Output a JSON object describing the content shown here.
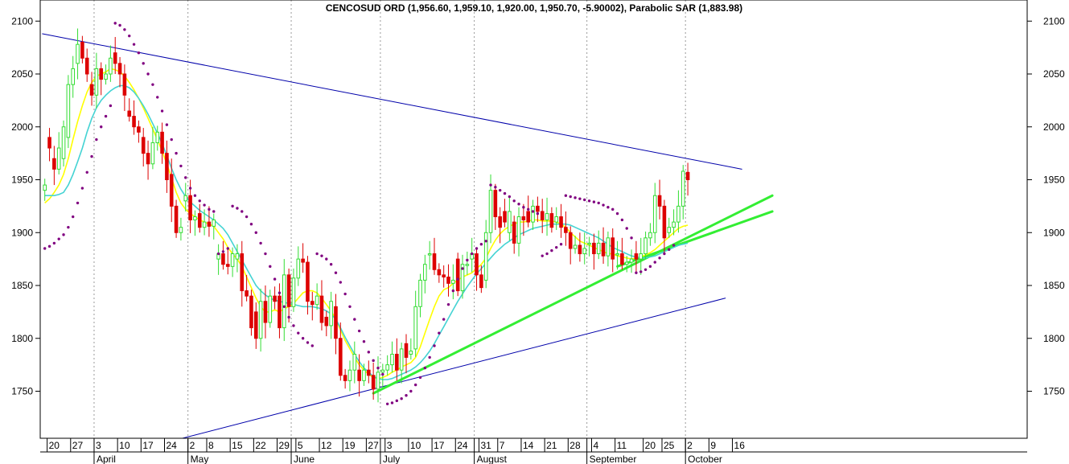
{
  "chart_data": {
    "type": "candlestick",
    "title": "CENCOSUD ORD (1,956.60, 1,959.10, 1,920.00, 1,950.70, -5.90002), Parabolic SAR (1,883.98)",
    "ylim": [
      1705,
      2125
    ],
    "y_ticks": [
      1750,
      1800,
      1850,
      1900,
      1950,
      2000,
      2050,
      2100
    ],
    "x_axis": {
      "day_ticks": [
        {
          "label": "20",
          "i": 1
        },
        {
          "label": "27",
          "i": 6
        },
        {
          "label": "3",
          "i": 11
        },
        {
          "label": "10",
          "i": 16
        },
        {
          "label": "17",
          "i": 21
        },
        {
          "label": "24",
          "i": 26
        },
        {
          "label": "2",
          "i": 31
        },
        {
          "label": "8",
          "i": 35
        },
        {
          "label": "15",
          "i": 40
        },
        {
          "label": "22",
          "i": 45
        },
        {
          "label": "29",
          "i": 50
        },
        {
          "label": "5",
          "i": 54
        },
        {
          "label": "12",
          "i": 59
        },
        {
          "label": "19",
          "i": 64
        },
        {
          "label": "27",
          "i": 69
        },
        {
          "label": "3",
          "i": 73
        },
        {
          "label": "10",
          "i": 78
        },
        {
          "label": "17",
          "i": 83
        },
        {
          "label": "24",
          "i": 88
        },
        {
          "label": "31",
          "i": 93
        },
        {
          "label": "7",
          "i": 97
        },
        {
          "label": "14",
          "i": 102
        },
        {
          "label": "21",
          "i": 107
        },
        {
          "label": "28",
          "i": 112
        },
        {
          "label": "4",
          "i": 117
        },
        {
          "label": "11",
          "i": 122
        },
        {
          "label": "20",
          "i": 128
        },
        {
          "label": "25",
          "i": 132
        },
        {
          "label": "2",
          "i": 137
        },
        {
          "label": "9",
          "i": 142
        },
        {
          "label": "16",
          "i": 147
        }
      ],
      "month_ticks": [
        {
          "label": "April",
          "i": 11
        },
        {
          "label": "May",
          "i": 31
        },
        {
          "label": "June",
          "i": 53
        },
        {
          "label": "July",
          "i": 72
        },
        {
          "label": "August",
          "i": 92
        },
        {
          "label": "September",
          "i": 116
        },
        {
          "label": "October",
          "i": 137
        }
      ]
    },
    "series": [
      {
        "kind": "ohlc",
        "close": [
          1945,
          1980,
          1960,
          1980,
          2000,
          2040,
          2055,
          2078,
          2065,
          2050,
          2030,
          2055,
          2045,
          2050,
          2065,
          2060,
          2050,
          2030,
          2010,
          2000,
          1995,
          1975,
          1965,
          1985,
          1995,
          1975,
          1950,
          1925,
          1900,
          1905,
          1935,
          1912,
          1915,
          1905,
          1910,
          1906,
          1912,
          1880,
          1870,
          1868,
          1880,
          1880,
          1845,
          1840,
          1810,
          1800,
          1835,
          1815,
          1840,
          1835,
          1810,
          1860,
          1830,
          1857,
          1875,
          1872,
          1835,
          1832,
          1840,
          1815,
          1812,
          1835,
          1800,
          1765,
          1760,
          1770,
          1785,
          1760,
          1770,
          1765,
          1752,
          1768,
          1770,
          1775,
          1785,
          1770,
          1790,
          1782,
          1788,
          1830,
          1855,
          1870,
          1880,
          1865,
          1860,
          1858,
          1852,
          1855,
          1845,
          1870,
          1870,
          1880,
          1860,
          1848,
          1900,
          1940,
          1915,
          1905,
          1910,
          1920,
          1890,
          1915,
          1912,
          1910,
          1925,
          1920,
          1912,
          1918,
          1905,
          1915,
          1905,
          1900,
          1885,
          1888,
          1880,
          1885,
          1890,
          1880,
          1890,
          1878,
          1895,
          1875,
          1880,
          1870,
          1872,
          1875,
          1875,
          1880,
          1895,
          1900,
          1935,
          1925,
          1895,
          1905,
          1910,
          1925,
          1958,
          1950
        ],
        "open": [
          1940,
          1990,
          1970,
          1960,
          1970,
          1990,
          2040,
          2060,
          2080,
          2065,
          2040,
          2030,
          2055,
          2045,
          2050,
          2070,
          2060,
          2050,
          2015,
          2010,
          2000,
          1990,
          1975,
          1965,
          1985,
          1995,
          1975,
          1955,
          1925,
          1900,
          1930,
          1935,
          1912,
          1918,
          1905,
          1910,
          1906,
          1875,
          1880,
          1870,
          1868,
          1875,
          1880,
          1845,
          1840,
          1825,
          1800,
          1835,
          1815,
          1840,
          1840,
          1810,
          1860,
          1830,
          1857,
          1875,
          1872,
          1835,
          1832,
          1840,
          1820,
          1812,
          1830,
          1800,
          1765,
          1760,
          1770,
          1770,
          1760,
          1770,
          1765,
          1752,
          1768,
          1770,
          1775,
          1785,
          1770,
          1795,
          1785,
          1790,
          1830,
          1855,
          1880,
          1880,
          1865,
          1860,
          1858,
          1852,
          1875,
          1845,
          1870,
          1875,
          1880,
          1860,
          1855,
          1900,
          1940,
          1915,
          1920,
          1900,
          1910,
          1890,
          1915,
          1920,
          1910,
          1925,
          1920,
          1912,
          1918,
          1910,
          1915,
          1905,
          1900,
          1885,
          1888,
          1880,
          1890,
          1890,
          1880,
          1890,
          1878,
          1895,
          1880,
          1880,
          1870,
          1872,
          1880,
          1875,
          1880,
          1895,
          1900,
          1935,
          1925,
          1900,
          1905,
          1910,
          1925,
          1957
        ]
      },
      {
        "kind": "line",
        "color": "#ffff00",
        "values": [
          1928,
          1932,
          1938,
          1945,
          1955,
          1970,
          1988,
          2005,
          2020,
          2033,
          2042,
          2048,
          2050,
          2052,
          2055,
          2054,
          2052,
          2048,
          2042,
          2035,
          2027,
          2018,
          2008,
          1998,
          1988,
          1977,
          1965,
          1952,
          1938,
          1928,
          1922,
          1918,
          1915,
          1912,
          1910,
          1908,
          1906,
          1900,
          1894,
          1886,
          1880,
          1875,
          1868,
          1858,
          1848,
          1838,
          1830,
          1825,
          1825,
          1827,
          1825,
          1828,
          1830,
          1833,
          1838,
          1843,
          1845,
          1845,
          1843,
          1838,
          1832,
          1826,
          1818,
          1808,
          1798,
          1790,
          1782,
          1775,
          1770,
          1766,
          1763,
          1762,
          1763,
          1765,
          1768,
          1770,
          1773,
          1775,
          1777,
          1782,
          1792,
          1805,
          1818,
          1830,
          1840,
          1846,
          1848,
          1852,
          1855,
          1858,
          1860,
          1862,
          1866,
          1870,
          1876,
          1885,
          1893,
          1899,
          1903,
          1906,
          1908,
          1910,
          1910,
          1911,
          1912,
          1912,
          1911,
          1911,
          1911,
          1910,
          1908,
          1905,
          1900,
          1896,
          1892,
          1890,
          1888,
          1886,
          1884,
          1882,
          1880,
          1880,
          1878,
          1877,
          1876,
          1875,
          1876,
          1877,
          1879,
          1881,
          1884,
          1888,
          1892,
          1896,
          1900,
          1904,
          1906,
          1907
        ]
      },
      {
        "kind": "line",
        "color": "#44d3d3",
        "values": [
          1935,
          1935,
          1935,
          1936,
          1938,
          1945,
          1955,
          1967,
          1980,
          1995,
          2008,
          2018,
          2025,
          2030,
          2034,
          2037,
          2039,
          2039,
          2037,
          2033,
          2027,
          2020,
          2012,
          2003,
          1994,
          1984,
          1973,
          1961,
          1950,
          1941,
          1934,
          1929,
          1925,
          1921,
          1918,
          1915,
          1912,
          1908,
          1904,
          1898,
          1890,
          1882,
          1874,
          1866,
          1858,
          1850,
          1845,
          1841,
          1838,
          1836,
          1835,
          1834,
          1833,
          1832,
          1831,
          1830,
          1830,
          1830,
          1829,
          1828,
          1826,
          1823,
          1818,
          1810,
          1801,
          1793,
          1785,
          1778,
          1772,
          1768,
          1764,
          1762,
          1761,
          1761,
          1762,
          1764,
          1766,
          1768,
          1770,
          1773,
          1777,
          1782,
          1788,
          1795,
          1803,
          1811,
          1819,
          1827,
          1835,
          1842,
          1849,
          1855,
          1861,
          1866,
          1871,
          1876,
          1881,
          1885,
          1889,
          1892,
          1895,
          1898,
          1900,
          1902,
          1904,
          1905,
          1906,
          1907,
          1908,
          1908,
          1908,
          1908,
          1907,
          1905,
          1903,
          1901,
          1899,
          1897,
          1895,
          1892,
          1889,
          1886,
          1884,
          1882,
          1880,
          1878,
          1877,
          1876,
          1876,
          1877,
          1878,
          1880,
          1882,
          1884,
          1886,
          1888,
          1889,
          1890
        ]
      },
      {
        "kind": "sar",
        "color": "#800080",
        "values": [
          1885,
          1887,
          1890,
          1894,
          1898,
          1905,
          1915,
          1928,
          1942,
          1957,
          1972,
          1988,
          2000,
          2010,
          2020,
          2098,
          2096,
          2092,
          2086,
          2078,
          2070,
          2060,
          2050,
          2040,
          2028,
          2015,
          2002,
          1988,
          1975,
          1963,
          1952,
          1942,
          1935,
          1930,
          1926,
          1922,
          1920,
          1880,
          1882,
          1885,
          1925,
          1923,
          1920,
          1915,
          1908,
          1900,
          1890,
          1880,
          1868,
          1856,
          1843,
          1830,
          1820,
          1812,
          1805,
          1800,
          1796,
          1793,
          1880,
          1878,
          1875,
          1870,
          1862,
          1853,
          1842,
          1830,
          1818,
          1807,
          1797,
          1787,
          1779,
          1772,
          1766,
          1738,
          1739,
          1741,
          1743,
          1746,
          1750,
          1756,
          1763,
          1772,
          1782,
          1793,
          1805,
          1818,
          1832,
          1845,
          1856,
          1866,
          1874,
          1880,
          1885,
          1889,
          1892,
          1945,
          1943,
          1940,
          1937,
          1934,
          1930,
          1927,
          1924,
          1922,
          1920,
          1918,
          1878,
          1880,
          1883,
          1886,
          1889,
          1935,
          1934,
          1933,
          1932,
          1931,
          1930,
          1929,
          1928,
          1926,
          1924,
          1922,
          1918,
          1912,
          1904,
          1895,
          1862,
          1863,
          1865,
          1868,
          1872,
          1876,
          1880,
          1884,
          1888
        ]
      }
    ],
    "trendlines": [
      {
        "color": "#0000aa",
        "width": 1,
        "from": {
          "i": -0.5,
          "y": 2088
        },
        "to": {
          "i": 148.5,
          "y": 1960
        }
      },
      {
        "color": "#0000aa",
        "width": 1,
        "from": {
          "i": 28,
          "y": 1704
        },
        "to": {
          "i": 145,
          "y": 1838
        }
      },
      {
        "color": "#33ee33",
        "width": 3,
        "from": {
          "i": 70,
          "y": 1748
        },
        "to": {
          "i": 155,
          "y": 1935
        }
      },
      {
        "color": "#33ee33",
        "width": 3,
        "from": {
          "i": 122,
          "y": 1868
        },
        "to": {
          "i": 155,
          "y": 1920
        }
      }
    ]
  }
}
